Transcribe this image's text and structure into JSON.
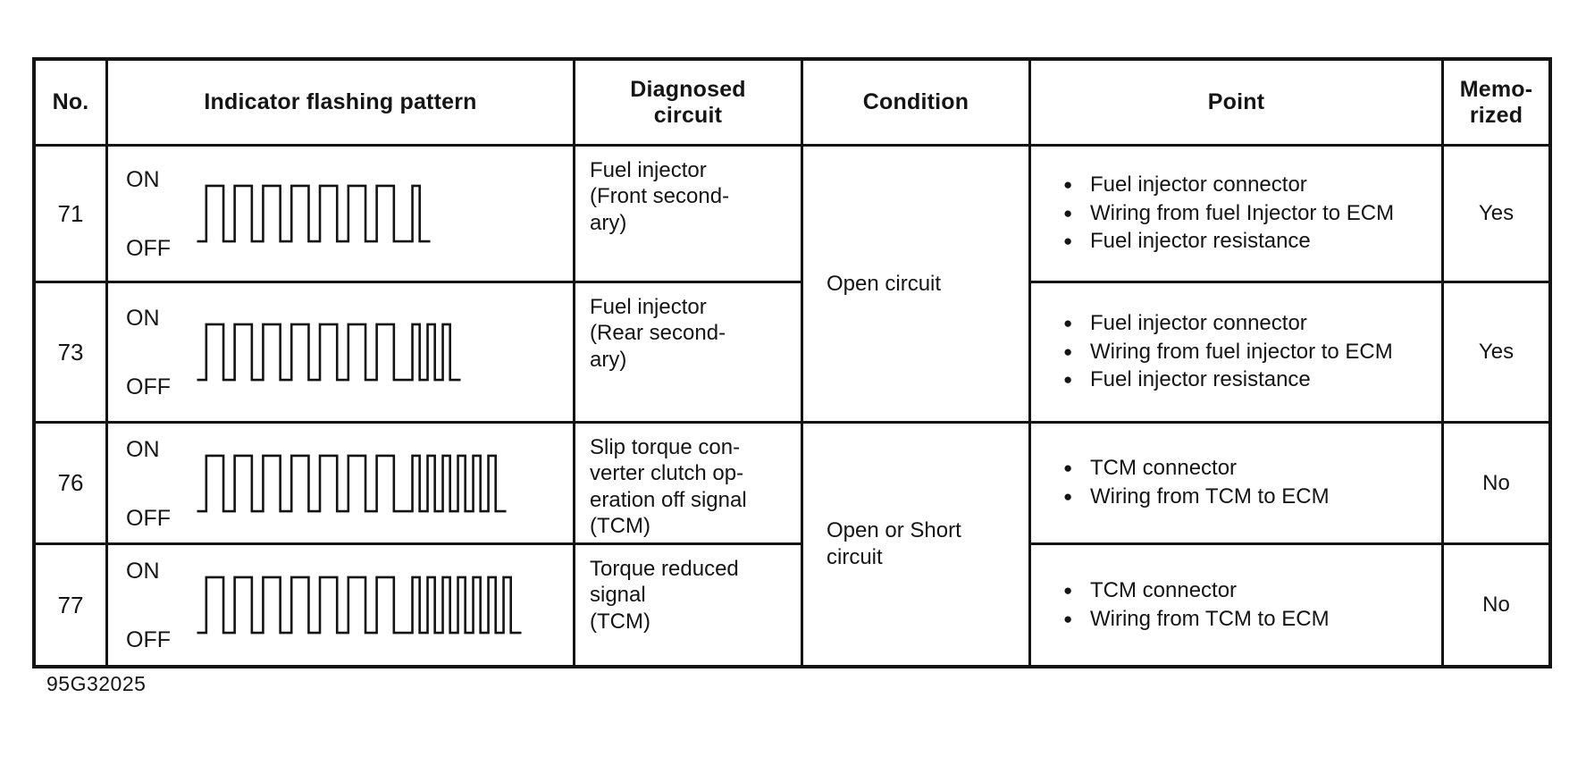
{
  "page": {
    "caption": "95G32025",
    "ink_color": "#141414",
    "paper_color": "#ffffff"
  },
  "table": {
    "headers": {
      "no": "No.",
      "pattern": "Indicator flashing pattern",
      "diagnosed": "Diagnosed\ncircuit",
      "condition": "Condition",
      "point": "Point",
      "memorized": "Memo-\nrized"
    },
    "conditions": [
      {
        "label": "Open circuit",
        "applies_to_codes": [
          "71",
          "73"
        ]
      },
      {
        "label": "Open or Short\ncircuit",
        "applies_to_codes": [
          "76",
          "77"
        ]
      }
    ],
    "rows": [
      {
        "no": "71",
        "on_label": "ON",
        "off_label": "OFF",
        "pattern": {
          "long_flashes": 7,
          "short_flashes": 1
        },
        "diagnosed": "Fuel injector\n(Front second-\nary)",
        "points": [
          "Fuel injector connector",
          "Wiring from fuel Injector to ECM",
          "Fuel injector resistance"
        ],
        "memorized": "Yes"
      },
      {
        "no": "73",
        "on_label": "ON",
        "off_label": "OFF",
        "pattern": {
          "long_flashes": 7,
          "short_flashes": 3
        },
        "diagnosed": "Fuel injector\n(Rear second-\nary)",
        "points": [
          "Fuel injector connector",
          "Wiring from fuel injector to ECM",
          "Fuel injector resistance"
        ],
        "memorized": "Yes"
      },
      {
        "no": "76",
        "on_label": "ON",
        "off_label": "OFF",
        "pattern": {
          "long_flashes": 7,
          "short_flashes": 6
        },
        "diagnosed": "Slip torque con-\nverter clutch op-\neration off signal\n(TCM)",
        "points": [
          "TCM connector",
          "Wiring from TCM to ECM"
        ],
        "memorized": "No"
      },
      {
        "no": "77",
        "on_label": "ON",
        "off_label": "OFF",
        "pattern": {
          "long_flashes": 7,
          "short_flashes": 7
        },
        "diagnosed": "Torque reduced\nsignal\n(TCM)",
        "points": [
          "TCM connector",
          "Wiring from TCM to ECM"
        ],
        "memorized": "No"
      }
    ]
  }
}
